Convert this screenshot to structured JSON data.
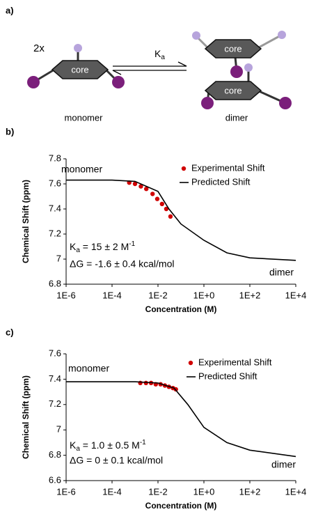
{
  "diagram": {
    "panel_label": "a)",
    "multiplier": "2x",
    "monomer": {
      "core": "core",
      "label": "monomer"
    },
    "dimer": {
      "top_core": "core",
      "bottom_core": "core",
      "label": "dimer"
    },
    "equilibrium": {
      "symbol": "K",
      "subscript": "a"
    }
  },
  "chart_data": [
    {
      "type": "scatter",
      "panel_label": "b)",
      "x_label": "Concentration (M)",
      "y_label": "Chemical Shift (ppm)",
      "xlog": true,
      "xlim": [
        1e-06,
        10000.0
      ],
      "xticks": [
        {
          "value": 1e-06,
          "label": "1E-6"
        },
        {
          "value": 0.0001,
          "label": "1E-4"
        },
        {
          "value": 0.01,
          "label": "1E-2"
        },
        {
          "value": 1,
          "label": "1E+0"
        },
        {
          "value": 100,
          "label": "1E+2"
        },
        {
          "value": 10000,
          "label": "1E+4"
        }
      ],
      "ylim": [
        6.8,
        7.8
      ],
      "yticks": [
        6.8,
        7,
        7.2,
        7.4,
        7.6,
        7.8
      ],
      "legend": "upper right",
      "series": [
        {
          "name": "Experimental Shift",
          "color": "#d00000",
          "kind": "scatter",
          "x": [
            0.00056,
            0.001,
            0.0018,
            0.0031,
            0.0058,
            0.0093,
            0.015,
            0.023,
            0.035
          ],
          "values": [
            7.61,
            7.6,
            7.58,
            7.56,
            7.52,
            7.48,
            7.44,
            7.4,
            7.34
          ]
        },
        {
          "name": "Predicted Shift",
          "color": "#000000",
          "kind": "line",
          "x": [
            1e-06,
            0.0001,
            0.001,
            0.01,
            0.03,
            0.1,
            1,
            10,
            100,
            10000
          ],
          "values": [
            7.63,
            7.63,
            7.62,
            7.54,
            7.4,
            7.28,
            7.15,
            7.05,
            7.01,
            6.99
          ]
        }
      ],
      "annotations": {
        "start": "monomer",
        "end": "dimer",
        "ka_symbol": "K",
        "ka_subscript": "a",
        "ka_text": " = 15 ± 2 M",
        "ka_superscript": "-1",
        "dg": "ΔG = -1.6 ± 0.4 kcal/mol"
      }
    },
    {
      "type": "scatter",
      "panel_label": "c)",
      "x_label": "Concentration (M)",
      "y_label": "Chemical Shift (ppm)",
      "xlog": true,
      "xlim": [
        1e-06,
        10000.0
      ],
      "xticks": [
        {
          "value": 1e-06,
          "label": "1E-6"
        },
        {
          "value": 0.0001,
          "label": "1E-4"
        },
        {
          "value": 0.01,
          "label": "1E-2"
        },
        {
          "value": 1,
          "label": "1E+0"
        },
        {
          "value": 100,
          "label": "1E+2"
        },
        {
          "value": 10000,
          "label": "1E+4"
        }
      ],
      "ylim": [
        6.6,
        7.6
      ],
      "yticks": [
        6.6,
        6.8,
        7,
        7.2,
        7.4,
        7.6
      ],
      "legend": "upper right",
      "series": [
        {
          "name": "Experimental Shift",
          "color": "#d00000",
          "kind": "scatter",
          "x": [
            0.0017,
            0.003,
            0.005,
            0.008,
            0.013,
            0.02,
            0.03,
            0.045,
            0.06
          ],
          "values": [
            7.37,
            7.37,
            7.37,
            7.36,
            7.36,
            7.35,
            7.34,
            7.33,
            7.32
          ]
        },
        {
          "name": "Predicted Shift",
          "color": "#000000",
          "kind": "line",
          "x": [
            1e-06,
            0.001,
            0.01,
            0.05,
            0.2,
            1,
            10,
            100,
            10000
          ],
          "values": [
            7.38,
            7.38,
            7.37,
            7.33,
            7.2,
            7.02,
            6.9,
            6.84,
            6.79
          ]
        }
      ],
      "annotations": {
        "start": "monomer",
        "end": "dimer",
        "ka_symbol": "K",
        "ka_subscript": "a",
        "ka_text": " = 1.0 ± 0.5 M",
        "ka_superscript": "-1",
        "dg": "ΔG = 0 ± 0.1 kcal/mol"
      }
    }
  ]
}
